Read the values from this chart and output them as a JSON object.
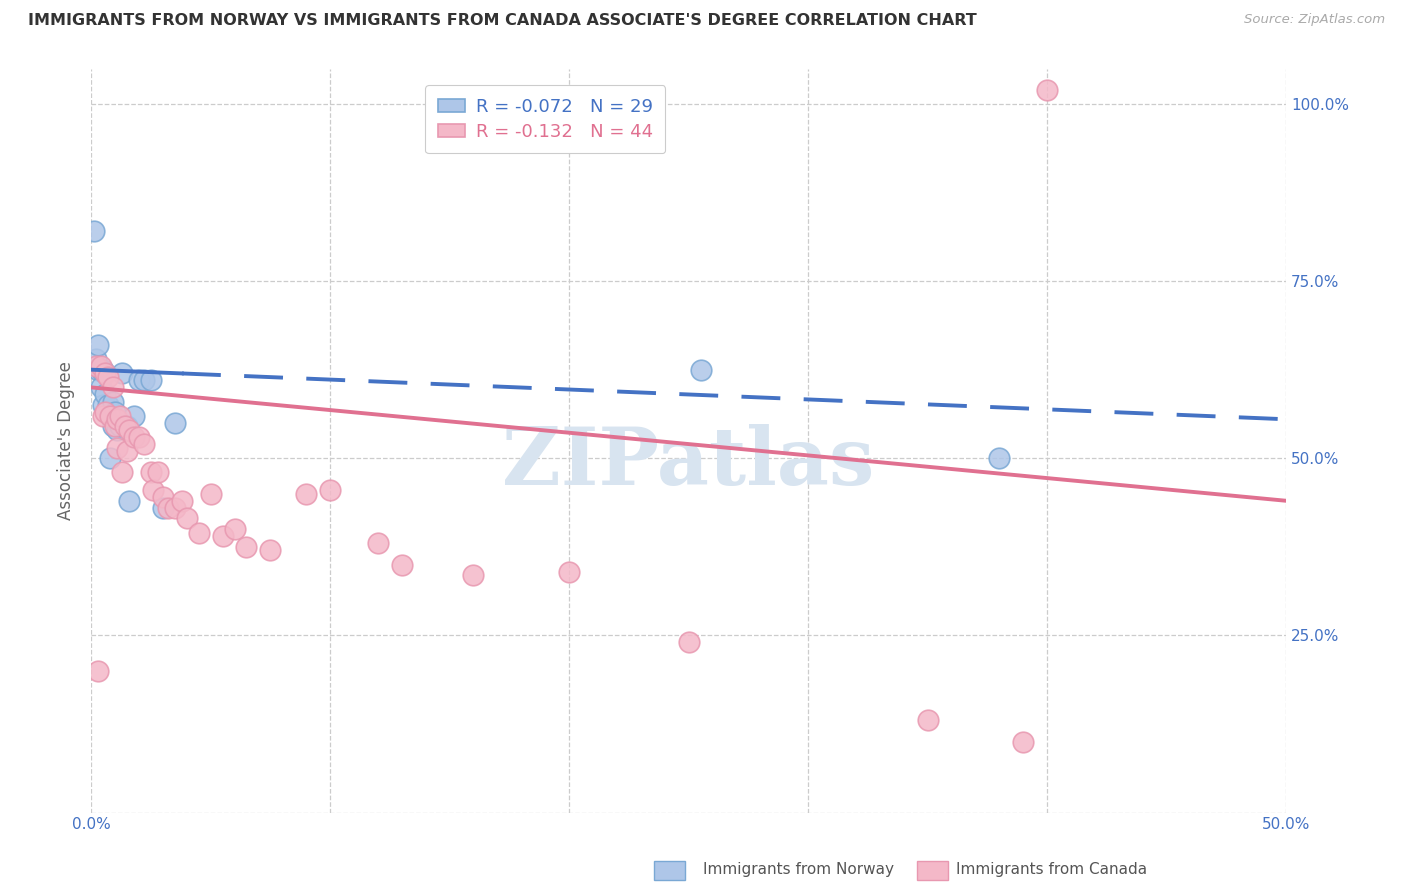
{
  "title": "IMMIGRANTS FROM NORWAY VS IMMIGRANTS FROM CANADA ASSOCIATE'S DEGREE CORRELATION CHART",
  "source": "Source: ZipAtlas.com",
  "ylabel": "Associate's Degree",
  "norway_R": -0.072,
  "norway_N": 29,
  "canada_R": -0.132,
  "canada_N": 44,
  "norway_color": "#aec6e8",
  "canada_color": "#f4b8c8",
  "norway_edge_color": "#7aa8d4",
  "canada_edge_color": "#e898b0",
  "norway_line_color": "#4472c4",
  "canada_line_color": "#e07090",
  "norway_points_x": [
    0.001,
    0.002,
    0.003,
    0.003,
    0.004,
    0.004,
    0.005,
    0.005,
    0.006,
    0.006,
    0.007,
    0.008,
    0.008,
    0.009,
    0.009,
    0.01,
    0.011,
    0.012,
    0.013,
    0.015,
    0.016,
    0.018,
    0.02,
    0.022,
    0.025,
    0.03,
    0.035,
    0.255,
    0.38
  ],
  "norway_points_y": [
    0.82,
    0.64,
    0.66,
    0.625,
    0.625,
    0.6,
    0.625,
    0.575,
    0.62,
    0.59,
    0.575,
    0.56,
    0.5,
    0.58,
    0.545,
    0.565,
    0.54,
    0.545,
    0.62,
    0.545,
    0.44,
    0.56,
    0.61,
    0.61,
    0.61,
    0.43,
    0.55,
    0.625,
    0.5
  ],
  "canada_points_x": [
    0.002,
    0.003,
    0.004,
    0.005,
    0.006,
    0.006,
    0.007,
    0.008,
    0.009,
    0.01,
    0.011,
    0.011,
    0.012,
    0.013,
    0.014,
    0.015,
    0.016,
    0.018,
    0.02,
    0.022,
    0.025,
    0.026,
    0.028,
    0.03,
    0.032,
    0.035,
    0.038,
    0.04,
    0.045,
    0.05,
    0.055,
    0.06,
    0.065,
    0.075,
    0.09,
    0.1,
    0.12,
    0.13,
    0.16,
    0.2,
    0.25,
    0.35,
    0.39,
    0.4
  ],
  "canada_points_y": [
    0.63,
    0.2,
    0.63,
    0.56,
    0.62,
    0.565,
    0.615,
    0.56,
    0.6,
    0.545,
    0.555,
    0.515,
    0.56,
    0.48,
    0.545,
    0.51,
    0.54,
    0.53,
    0.53,
    0.52,
    0.48,
    0.455,
    0.48,
    0.445,
    0.43,
    0.43,
    0.44,
    0.415,
    0.395,
    0.45,
    0.39,
    0.4,
    0.375,
    0.37,
    0.45,
    0.455,
    0.38,
    0.35,
    0.335,
    0.34,
    0.24,
    0.13,
    0.1,
    1.02
  ],
  "xmin": 0.0,
  "xmax": 0.5,
  "ymin": 0.0,
  "ymax": 1.05,
  "y_ticks": [
    0.0,
    0.25,
    0.5,
    0.75,
    1.0
  ],
  "y_tick_labels": [
    "",
    "25.0%",
    "50.0%",
    "75.0%",
    "100.0%"
  ],
  "x_ticks": [
    0.0,
    0.1,
    0.2,
    0.3,
    0.4,
    0.5
  ],
  "x_tick_labels": [
    "0.0%",
    "",
    "",
    "",
    "",
    "50.0%"
  ],
  "background_color": "#ffffff",
  "grid_color": "#cccccc",
  "norway_trend_solid_end": 0.038,
  "watermark_text": "ZIPatlas",
  "watermark_color": "#d8e4f0"
}
